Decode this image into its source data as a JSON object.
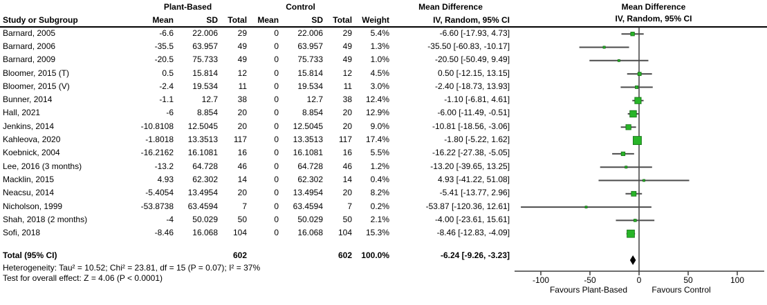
{
  "table": {
    "group_headers": {
      "plant": "Plant-Based",
      "control": "Control",
      "mean_difference_text_col": "Mean Difference",
      "mean_difference_plot_col": "Mean Difference"
    },
    "col_headers": {
      "study": "Study or Subgroup",
      "mean1": "Mean",
      "sd1": "SD",
      "total1": "Total",
      "mean2": "Mean",
      "sd2": "SD",
      "total2": "Total",
      "weight": "Weight",
      "ci": "IV, Random, 95% CI",
      "ci_plot": "IV, Random, 95% CI"
    },
    "rows": [
      {
        "study": "Barnard, 2005",
        "mean1": "-6.6",
        "sd1": "22.006",
        "total1": "29",
        "mean2": "0",
        "sd2": "22.006",
        "total2": "29",
        "weight": "5.4%",
        "ci": "-6.60 [-17.93, 4.73]"
      },
      {
        "study": "Barnard, 2006",
        "mean1": "-35.5",
        "sd1": "63.957",
        "total1": "49",
        "mean2": "0",
        "sd2": "63.957",
        "total2": "49",
        "weight": "1.3%",
        "ci": "-35.50 [-60.83, -10.17]"
      },
      {
        "study": "Barnard, 2009",
        "mean1": "-20.5",
        "sd1": "75.733",
        "total1": "49",
        "mean2": "0",
        "sd2": "75.733",
        "total2": "49",
        "weight": "1.0%",
        "ci": "-20.50 [-50.49, 9.49]"
      },
      {
        "study": "Bloomer, 2015 (T)",
        "mean1": "0.5",
        "sd1": "15.814",
        "total1": "12",
        "mean2": "0",
        "sd2": "15.814",
        "total2": "12",
        "weight": "4.5%",
        "ci": "0.50 [-12.15, 13.15]"
      },
      {
        "study": "Bloomer, 2015 (V)",
        "mean1": "-2.4",
        "sd1": "19.534",
        "total1": "11",
        "mean2": "0",
        "sd2": "19.534",
        "total2": "11",
        "weight": "3.0%",
        "ci": "-2.40 [-18.73, 13.93]"
      },
      {
        "study": "Bunner, 2014",
        "mean1": "-1.1",
        "sd1": "12.7",
        "total1": "38",
        "mean2": "0",
        "sd2": "12.7",
        "total2": "38",
        "weight": "12.4%",
        "ci": "-1.10 [-6.81, 4.61]"
      },
      {
        "study": "Hall, 2021",
        "mean1": "-6",
        "sd1": "8.854",
        "total1": "20",
        "mean2": "0",
        "sd2": "8.854",
        "total2": "20",
        "weight": "12.9%",
        "ci": "-6.00 [-11.49, -0.51]"
      },
      {
        "study": "Jenkins, 2014",
        "mean1": "-10.8108",
        "sd1": "12.5045",
        "total1": "20",
        "mean2": "0",
        "sd2": "12.5045",
        "total2": "20",
        "weight": "9.0%",
        "ci": "-10.81 [-18.56, -3.06]"
      },
      {
        "study": "Kahleova, 2020",
        "mean1": "-1.8018",
        "sd1": "13.3513",
        "total1": "117",
        "mean2": "0",
        "sd2": "13.3513",
        "total2": "117",
        "weight": "17.4%",
        "ci": "-1.80 [-5.22, 1.62]"
      },
      {
        "study": "Koebnick, 2004",
        "mean1": "-16.2162",
        "sd1": "16.1081",
        "total1": "16",
        "mean2": "0",
        "sd2": "16.1081",
        "total2": "16",
        "weight": "5.5%",
        "ci": "-16.22 [-27.38, -5.05]"
      },
      {
        "study": "Lee, 2016 (3 months)",
        "mean1": "-13.2",
        "sd1": "64.728",
        "total1": "46",
        "mean2": "0",
        "sd2": "64.728",
        "total2": "46",
        "weight": "1.2%",
        "ci": "-13.20 [-39.65, 13.25]"
      },
      {
        "study": "Macklin, 2015",
        "mean1": "4.93",
        "sd1": "62.302",
        "total1": "14",
        "mean2": "0",
        "sd2": "62.302",
        "total2": "14",
        "weight": "0.4%",
        "ci": "4.93 [-41.22, 51.08]"
      },
      {
        "study": "Neacsu, 2014",
        "mean1": "-5.4054",
        "sd1": "13.4954",
        "total1": "20",
        "mean2": "0",
        "sd2": "13.4954",
        "total2": "20",
        "weight": "8.2%",
        "ci": "-5.41 [-13.77, 2.96]"
      },
      {
        "study": "Nicholson, 1999",
        "mean1": "-53.8738",
        "sd1": "63.4594",
        "total1": "7",
        "mean2": "0",
        "sd2": "63.4594",
        "total2": "7",
        "weight": "0.2%",
        "ci": "-53.87 [-120.36, 12.61]"
      },
      {
        "study": "Shah, 2018 (2 months)",
        "mean1": "-4",
        "sd1": "50.029",
        "total1": "50",
        "mean2": "0",
        "sd2": "50.029",
        "total2": "50",
        "weight": "2.1%",
        "ci": "-4.00 [-23.61, 15.61]"
      },
      {
        "study": "Sofi, 2018",
        "mean1": "-8.46",
        "sd1": "16.068",
        "total1": "104",
        "mean2": "0",
        "sd2": "16.068",
        "total2": "104",
        "weight": "15.3%",
        "ci": "-8.46 [-12.83, -4.09]"
      }
    ],
    "total_row": {
      "label": "Total (95% CI)",
      "total1": "602",
      "total2": "602",
      "weight": "100.0%",
      "ci": "-6.24 [-9.26, -3.23]"
    },
    "footnotes": {
      "heterogeneity": "Heterogeneity: Tau² = 10.52; Chi² = 23.81, df = 15 (P = 0.07); I² = 37%",
      "overall_effect": "Test for overall effect: Z = 4.06 (P < 0.0001)"
    }
  },
  "axis": {
    "ticks": [
      "-100",
      "-50",
      "0",
      "50",
      "100"
    ],
    "favours_left": "Favours Plant-Based",
    "favours_right": "Favours Control"
  },
  "colors": {
    "marker_fill": "#28b428",
    "marker_stroke": "#156e15",
    "ci_line": "#4a4a4a",
    "zero_line": "#4a4a4a",
    "axis_line": "#3c3c3c",
    "diamond": "#000000"
  },
  "chart_data": {
    "type": "scatter",
    "subtype": "forest-plot",
    "title": "Mean Difference",
    "subtitle": "IV, Random, 95% CI",
    "xlabel": "Mean Difference (IV, Random, 95% CI)",
    "xlim": [
      -127,
      127
    ],
    "x_ticks": [
      -100,
      -50,
      0,
      50,
      100
    ],
    "favours_left": "Favours Plant-Based",
    "favours_right": "Favours Control",
    "studies": [
      {
        "name": "Barnard, 2005",
        "est": -6.6,
        "lo": -17.93,
        "hi": 4.73,
        "weight": 5.4
      },
      {
        "name": "Barnard, 2006",
        "est": -35.5,
        "lo": -60.83,
        "hi": -10.17,
        "weight": 1.3
      },
      {
        "name": "Barnard, 2009",
        "est": -20.5,
        "lo": -50.49,
        "hi": 9.49,
        "weight": 1.0
      },
      {
        "name": "Bloomer, 2015 (T)",
        "est": 0.5,
        "lo": -12.15,
        "hi": 13.15,
        "weight": 4.5
      },
      {
        "name": "Bloomer, 2015 (V)",
        "est": -2.4,
        "lo": -18.73,
        "hi": 13.93,
        "weight": 3.0
      },
      {
        "name": "Bunner, 2014",
        "est": -1.1,
        "lo": -6.81,
        "hi": 4.61,
        "weight": 12.4
      },
      {
        "name": "Hall, 2021",
        "est": -6.0,
        "lo": -11.49,
        "hi": -0.51,
        "weight": 12.9
      },
      {
        "name": "Jenkins, 2014",
        "est": -10.81,
        "lo": -18.56,
        "hi": -3.06,
        "weight": 9.0
      },
      {
        "name": "Kahleova, 2020",
        "est": -1.8,
        "lo": -5.22,
        "hi": 1.62,
        "weight": 17.4
      },
      {
        "name": "Koebnick, 2004",
        "est": -16.22,
        "lo": -27.38,
        "hi": -5.05,
        "weight": 5.5
      },
      {
        "name": "Lee, 2016 (3 months)",
        "est": -13.2,
        "lo": -39.65,
        "hi": 13.25,
        "weight": 1.2
      },
      {
        "name": "Macklin, 2015",
        "est": 4.93,
        "lo": -41.22,
        "hi": 51.08,
        "weight": 0.4
      },
      {
        "name": "Neacsu, 2014",
        "est": -5.41,
        "lo": -13.77,
        "hi": 2.96,
        "weight": 8.2
      },
      {
        "name": "Nicholson, 1999",
        "est": -53.87,
        "lo": -120.36,
        "hi": 12.61,
        "weight": 0.2
      },
      {
        "name": "Shah, 2018 (2 months)",
        "est": -4.0,
        "lo": -23.61,
        "hi": 15.61,
        "weight": 2.1
      },
      {
        "name": "Sofi, 2018",
        "est": -8.46,
        "lo": -12.83,
        "hi": -4.09,
        "weight": 15.3
      }
    ],
    "total": {
      "name": "Total (95% CI)",
      "est": -6.24,
      "lo": -9.26,
      "hi": -3.23,
      "weight": 100.0
    },
    "heterogeneity": {
      "tau2": 10.52,
      "chi2": 23.81,
      "df": 15,
      "p": 0.07,
      "i2_pct": 37
    },
    "overall_effect": {
      "z": 4.06,
      "p": "< 0.0001"
    }
  }
}
